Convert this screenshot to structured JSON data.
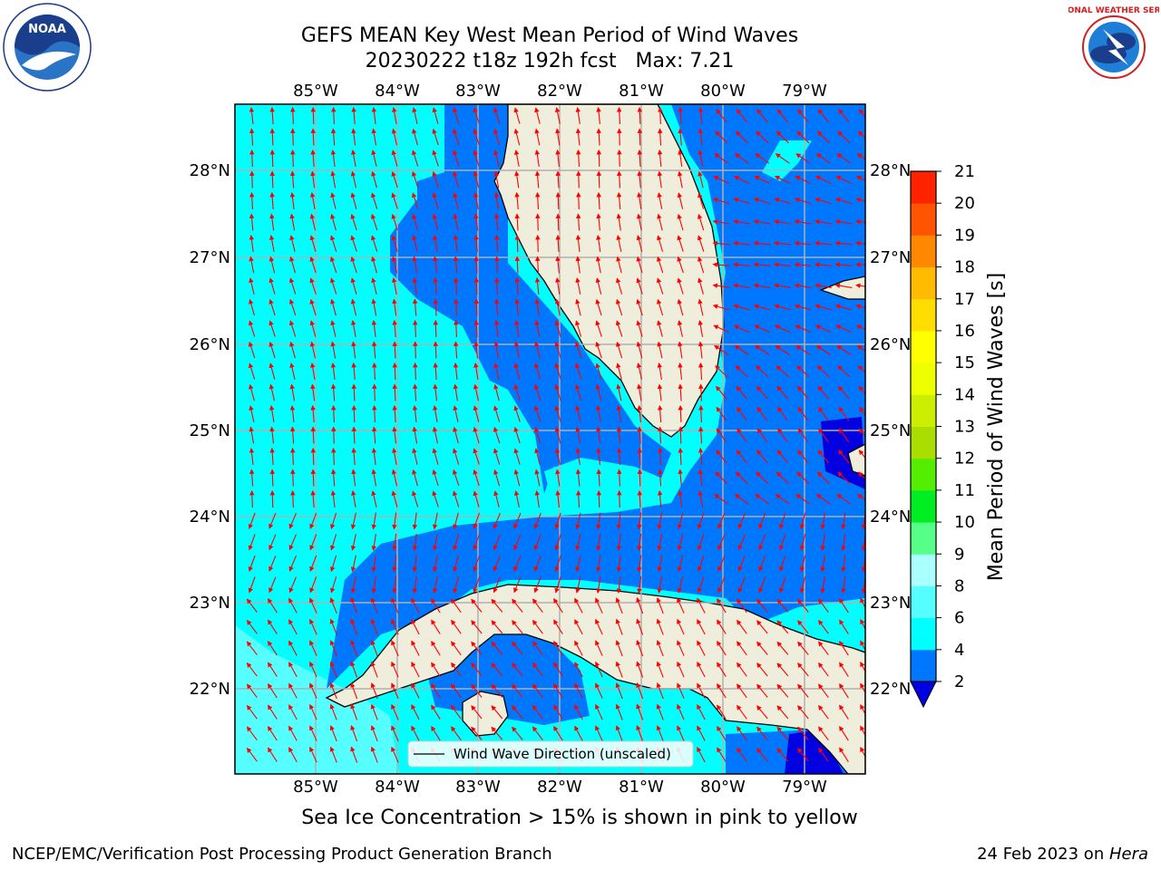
{
  "header": {
    "title_line1": "GEFS MEAN Key West Mean Period of Wind Waves",
    "title_line2": "20230222 t18z 192h fcst   Max: 7.21"
  },
  "map": {
    "lon_labels": [
      "85°W",
      "84°W",
      "83°W",
      "82°W",
      "81°W",
      "80°W",
      "79°W"
    ],
    "lat_labels": [
      "28°N",
      "27°N",
      "26°N",
      "25°N",
      "24°N",
      "23°N",
      "22°N"
    ],
    "legend_label": "Wind Wave Direction (unscaled)",
    "colors": {
      "water_cyan": "#00ffff",
      "water_light": "#55ffff",
      "water_blue": "#0077ff",
      "water_dark": "#0000e0",
      "land": "#efeddb",
      "arrow": "#ff0000",
      "grid": "#b0b0b0"
    }
  },
  "colorbar": {
    "label": "Mean Period of Wind Waves [s]",
    "ticks": [
      "2",
      "4",
      "6",
      "8",
      "9",
      "10",
      "11",
      "12",
      "13",
      "14",
      "15",
      "16",
      "17",
      "18",
      "19",
      "20",
      "21"
    ],
    "colors": [
      "#0077ff",
      "#00ffff",
      "#55ffff",
      "#aaffff",
      "#55ff88",
      "#00ee22",
      "#55ee00",
      "#aadd00",
      "#ccee00",
      "#eeff00",
      "#ffff00",
      "#ffdd00",
      "#ffbb00",
      "#ff8800",
      "#ff5500",
      "#ff2200"
    ],
    "extend_color": "#0000e0"
  },
  "subtitle": "Sea Ice Concentration > 15% is shown in pink to yellow",
  "footer": {
    "left": "NCEP/EMC/Verification Post Processing Product Generation Branch",
    "right_date": "24 Feb 2023 on ",
    "right_host": "Hera"
  },
  "logos": {
    "noaa_text": "NOAA",
    "nws_text": "NATIONAL WEATHER SERVICE"
  }
}
